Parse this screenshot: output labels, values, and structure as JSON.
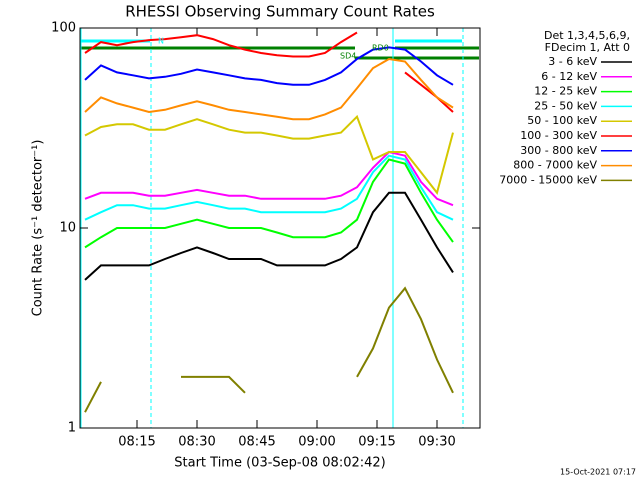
{
  "chart_data": {
    "type": "line",
    "title": "RHESSI Observing Summary Count Rates",
    "x_label": "Start Time (03-Sep-08 08:02:42)",
    "y_label": "Count Rate (s⁻¹ detector⁻¹)",
    "legend_header": [
      "Det 1,3,4,5,6,9,",
      "FDecim 1, Att 0"
    ],
    "footer": "15-Oct-2021 07:17",
    "annotations": [
      "N",
      "SD4",
      "RD0"
    ],
    "log_y": true,
    "xlim": [
      "08:00:45",
      "09:40:45"
    ],
    "xticks": [
      "08:15",
      "08:30",
      "08:45",
      "09:00",
      "09:15",
      "09:30"
    ],
    "ylim": [
      1,
      100
    ],
    "yticks": [
      1,
      10,
      100
    ],
    "x": [
      "08:02",
      "08:06",
      "08:10",
      "08:14",
      "08:18",
      "08:22",
      "08:26",
      "08:30",
      "08:34",
      "08:38",
      "08:42",
      "08:46",
      "08:50",
      "08:54",
      "08:58",
      "09:02",
      "09:06",
      "09:10",
      "09:14",
      "09:18",
      "09:22",
      "09:26",
      "09:30",
      "09:34",
      "09:38"
    ],
    "series": [
      {
        "name": "3 - 6 keV",
        "color": "#000000",
        "values": [
          5.5,
          6.5,
          6.5,
          6.5,
          6.5,
          7,
          7.5,
          8,
          7.5,
          7,
          7,
          7,
          6.5,
          6.5,
          6.5,
          6.5,
          7,
          8,
          12,
          15,
          15,
          11,
          8,
          6,
          null
        ]
      },
      {
        "name": "6 - 12 keV",
        "color": "#ff00ff",
        "values": [
          14,
          15,
          15,
          15,
          14.5,
          14.5,
          15,
          15.5,
          15,
          14.5,
          14.5,
          14,
          14,
          14,
          14,
          14,
          14.5,
          16,
          20,
          24,
          23,
          17,
          14,
          13,
          null
        ]
      },
      {
        "name": "12 - 25 keV",
        "color": "#00ff00",
        "values": [
          8,
          9,
          10,
          10,
          10,
          10,
          10.5,
          11,
          10.5,
          10,
          10,
          10,
          9.5,
          9,
          9,
          9,
          9.5,
          11,
          17,
          22,
          21,
          15,
          11,
          8.5,
          null
        ]
      },
      {
        "name": "25 - 50 keV",
        "color": "#00ffff",
        "values": [
          11,
          12,
          13,
          13,
          12.5,
          12.5,
          13,
          13.5,
          13,
          12.5,
          12.5,
          12,
          12,
          12,
          12,
          12,
          12.5,
          14,
          19,
          23,
          22,
          16,
          12,
          11,
          null
        ]
      },
      {
        "name": "50 - 100 keV",
        "color": "#d4c800",
        "values": [
          29,
          32,
          33,
          33,
          31,
          31,
          33,
          35,
          33,
          31,
          30,
          30,
          29,
          28,
          28,
          29,
          30,
          36,
          22,
          24,
          24,
          19,
          15,
          30,
          null
        ]
      },
      {
        "name": "100 - 300 keV",
        "color": "#ff0000",
        "values": [
          75,
          85,
          82,
          85,
          87,
          88,
          90,
          92,
          88,
          82,
          78,
          75,
          73,
          72,
          72,
          75,
          85,
          95,
          null,
          null,
          60,
          52,
          45,
          38,
          null
        ]
      },
      {
        "name": "300 - 800 keV",
        "color": "#0000ff",
        "values": [
          55,
          65,
          60,
          58,
          56,
          57,
          59,
          62,
          60,
          58,
          56,
          55,
          53,
          52,
          52,
          55,
          60,
          70,
          78,
          80,
          78,
          68,
          58,
          52,
          null
        ]
      },
      {
        "name": "800 - 7000 keV",
        "color": "#ff8c00",
        "values": [
          38,
          45,
          42,
          40,
          38,
          39,
          41,
          43,
          41,
          39,
          38,
          37,
          36,
          35,
          35,
          37,
          40,
          50,
          63,
          70,
          68,
          55,
          45,
          40,
          null
        ]
      },
      {
        "name": "7000 - 15000 keV",
        "color": "#808000",
        "values": [
          1.2,
          1.7,
          null,
          null,
          null,
          null,
          1.8,
          1.8,
          1.8,
          1.8,
          1.5,
          null,
          null,
          null,
          null,
          null,
          null,
          1.8,
          2.5,
          4,
          5,
          3.5,
          2.2,
          1.5,
          null
        ]
      }
    ]
  }
}
